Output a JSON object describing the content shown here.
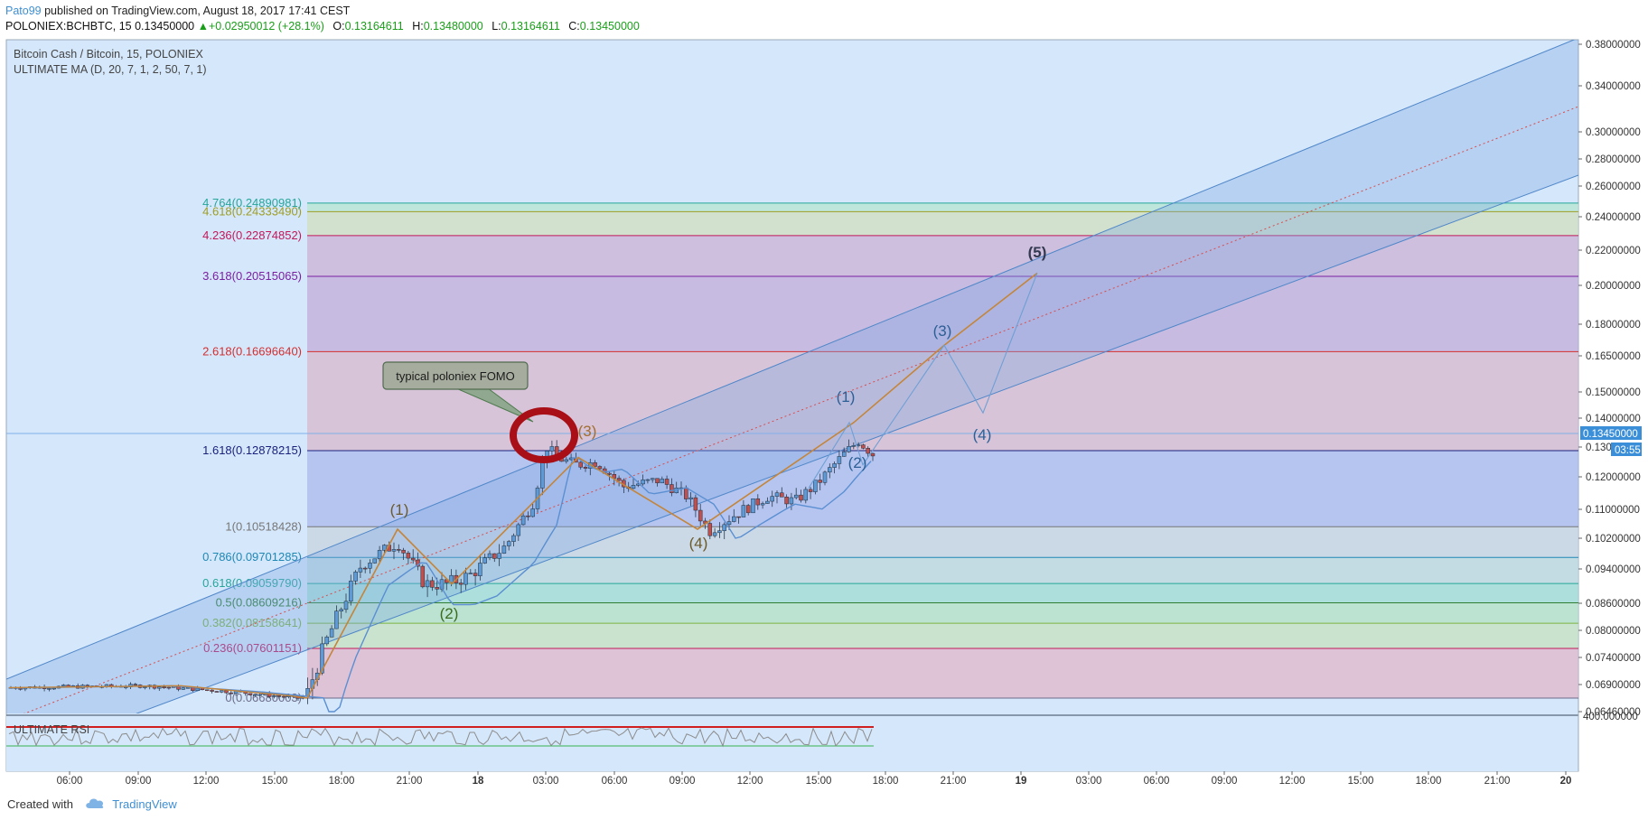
{
  "header": {
    "author": "Pato99",
    "published": " published on TradingView.com, August 18, 2017 17:41 CEST",
    "symbol_line": "POLONIEX:BCHBTC, 15  0.13450000",
    "change": "▲+0.02950012 (+28.1%)",
    "o_label": "O:",
    "o_value": "0.13164611",
    "h_label": "H:",
    "h_value": "0.13480000",
    "l_label": "L:",
    "l_value": "0.13164611",
    "c_label": "C:",
    "c_value": "0.13450000"
  },
  "legend": {
    "title": "Bitcoin Cash / Bitcoin, 15, POLONIEX",
    "indicator": "ULTIMATE MA (D, 20, 7, 1, 2, 50, 7, 1)",
    "rsi_label": "ULTIMATE RSI"
  },
  "annotation": {
    "text": "typical poloniex FOMO"
  },
  "price_badge": {
    "value": "0.13450000",
    "countdown": "03:55"
  },
  "footer": {
    "created_with": "Created with",
    "brand": "TradingView"
  },
  "colors": {
    "background": "#d5e7fb",
    "channel_fill": "#9dbde8",
    "channel_line": "#4f86c8",
    "wave_orange": "#c4853a",
    "wave_blue": "#6f9fd4",
    "price_badge": "#3b8fd9",
    "up_candle": "#5e9bd6",
    "down_candle": "#c0504d",
    "ma_line": "#5b8fd2",
    "fomo_ellipse": "#a80f16"
  },
  "chart_data": {
    "type": "candlestick",
    "symbol": "POLONIEX:BCHBTC",
    "timeframe": "15",
    "y_axis_ticks": [
      "0.38000000",
      "0.34000000",
      "0.30000000",
      "0.28000000",
      "0.26000000",
      "0.24000000",
      "0.22000000",
      "0.20000000",
      "0.18000000",
      "0.16500000",
      "0.15000000",
      "0.14000000",
      "0.13000000",
      "0.12000000",
      "0.11000000",
      "0.10200000",
      "0.09400000",
      "0.08600000",
      "0.08000000",
      "0.07400000",
      "0.06900000",
      "0.06460000"
    ],
    "x_axis_ticks": [
      "06:00",
      "09:00",
      "12:00",
      "15:00",
      "18:00",
      "21:00",
      "18",
      "03:00",
      "06:00",
      "09:00",
      "12:00",
      "15:00",
      "18:00",
      "21:00",
      "19",
      "03:00",
      "06:00",
      "09:00",
      "12:00",
      "15:00",
      "18:00",
      "21:00",
      "20"
    ],
    "rsi_axis_tick": "400.000000",
    "fib_levels": [
      {
        "ratio": "0",
        "price": 0.0668,
        "label": "0(0.06680003)",
        "color": "#6c6c8a"
      },
      {
        "ratio": "0.236",
        "price": 0.07601151,
        "label": "0.236(0.07601151)",
        "color": "#c2185b"
      },
      {
        "ratio": "0.382",
        "price": 0.08158641,
        "label": "0.382(0.08158641)",
        "color": "#7cb342"
      },
      {
        "ratio": "0.5",
        "price": 0.08609216,
        "label": "0.5(0.08609216)",
        "color": "#2e7d32"
      },
      {
        "ratio": "0.618",
        "price": 0.0905979,
        "label": "0.618(0.09059790)",
        "color": "#26a69a"
      },
      {
        "ratio": "0.786",
        "price": 0.09701285,
        "label": "0.786(0.09701285)",
        "color": "#1e88b5"
      },
      {
        "ratio": "1",
        "price": 0.10518428,
        "label": "1(0.10518428)",
        "color": "#777777"
      },
      {
        "ratio": "1.618",
        "price": 0.12878215,
        "label": "1.618(0.12878215)",
        "color": "#1a237e"
      },
      {
        "ratio": "2.618",
        "price": 0.1669664,
        "label": "2.618(0.16696640)",
        "color": "#d32f2f"
      },
      {
        "ratio": "3.618",
        "price": 0.20515065,
        "label": "3.618(0.20515065)",
        "color": "#7b1fa2"
      },
      {
        "ratio": "4.236",
        "price": 0.22874852,
        "label": "4.236(0.22874852)",
        "color": "#c2185b"
      },
      {
        "ratio": "4.618",
        "price": 0.2433349,
        "label": "4.618(0.24333490)",
        "color": "#9e9d24"
      },
      {
        "ratio": "4.764",
        "price": 0.24890981,
        "label": "4.764(0.24890981)",
        "color": "#26a69a"
      }
    ],
    "wave_labels_past": [
      {
        "label": "(1)",
        "color": "#6b5a2a"
      },
      {
        "label": "(2)",
        "color": "#3c6b1e"
      },
      {
        "label": "(3)",
        "color": "#a26d2e"
      },
      {
        "label": "(4)",
        "color": "#6b5a2a"
      }
    ],
    "wave_labels_projection": [
      {
        "label": "(1)",
        "color": "#2c5f95"
      },
      {
        "label": "(2)",
        "color": "#2c5f95"
      },
      {
        "label": "(3)",
        "color": "#2c5f95"
      },
      {
        "label": "(4)",
        "color": "#2c5f95"
      },
      {
        "label": "(5)",
        "color": "#333a50"
      }
    ]
  }
}
